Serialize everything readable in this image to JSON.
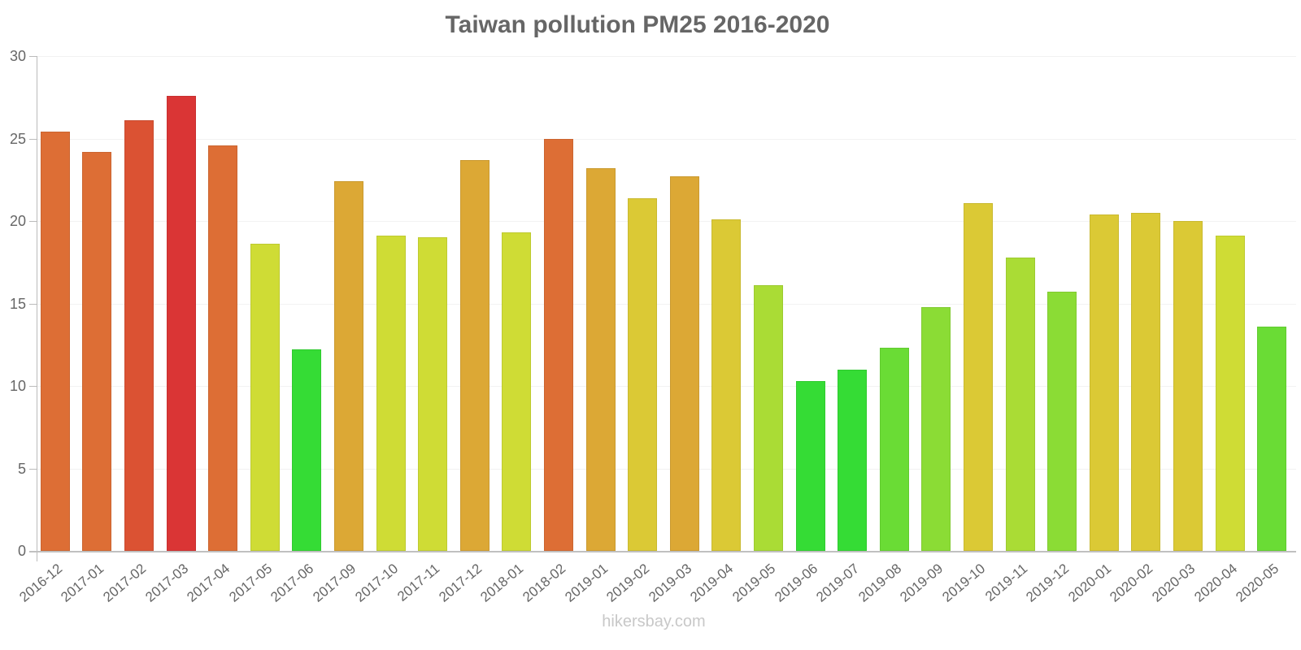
{
  "chart_data": {
    "type": "bar",
    "title": "Taiwan pollution PM25 2016-2020",
    "xlabel": "",
    "ylabel": "",
    "ylim": [
      0,
      30
    ],
    "yticks": [
      "0",
      "5",
      "10",
      "15",
      "20",
      "25",
      "30"
    ],
    "grid": true,
    "legend": null,
    "categories": [
      "2016-12",
      "2017-01",
      "2017-02",
      "2017-03",
      "2017-04",
      "2017-05",
      "2017-06",
      "2017-09",
      "2017-10",
      "2017-11",
      "2017-12",
      "2018-01",
      "2018-02",
      "2019-01",
      "2019-02",
      "2019-03",
      "2019-04",
      "2019-05",
      "2019-06",
      "2019-07",
      "2019-08",
      "2019-09",
      "2019-10",
      "2019-11",
      "2019-12",
      "2020-01",
      "2020-02",
      "2020-03",
      "2020-04",
      "2020-05"
    ],
    "values": [
      25.4,
      24.2,
      26.1,
      27.6,
      24.6,
      18.6,
      12.2,
      22.4,
      19.1,
      19.0,
      23.7,
      19.3,
      25.0,
      23.2,
      21.4,
      22.7,
      20.1,
      16.1,
      10.3,
      11.0,
      12.3,
      14.8,
      21.1,
      17.8,
      15.7,
      20.4,
      20.5,
      20.0,
      19.1,
      13.6
    ],
    "colors": [
      "#dd6e35",
      "#dd6e35",
      "#db5233",
      "#da3535",
      "#dd6e35",
      "#cfdc35",
      "#35dc35",
      "#dca835",
      "#cfdc35",
      "#cfdc35",
      "#dca835",
      "#cfdc35",
      "#dd6e35",
      "#dca835",
      "#dbc935",
      "#dca835",
      "#dbc935",
      "#aadc35",
      "#35dc35",
      "#35dc35",
      "#6adc35",
      "#8bdc35",
      "#dbc935",
      "#aadc35",
      "#8bdc35",
      "#dbc935",
      "#dbc935",
      "#dbc935",
      "#cfdc35",
      "#6adc35"
    ]
  },
  "footer": {
    "watermark": "hikersbay.com"
  }
}
